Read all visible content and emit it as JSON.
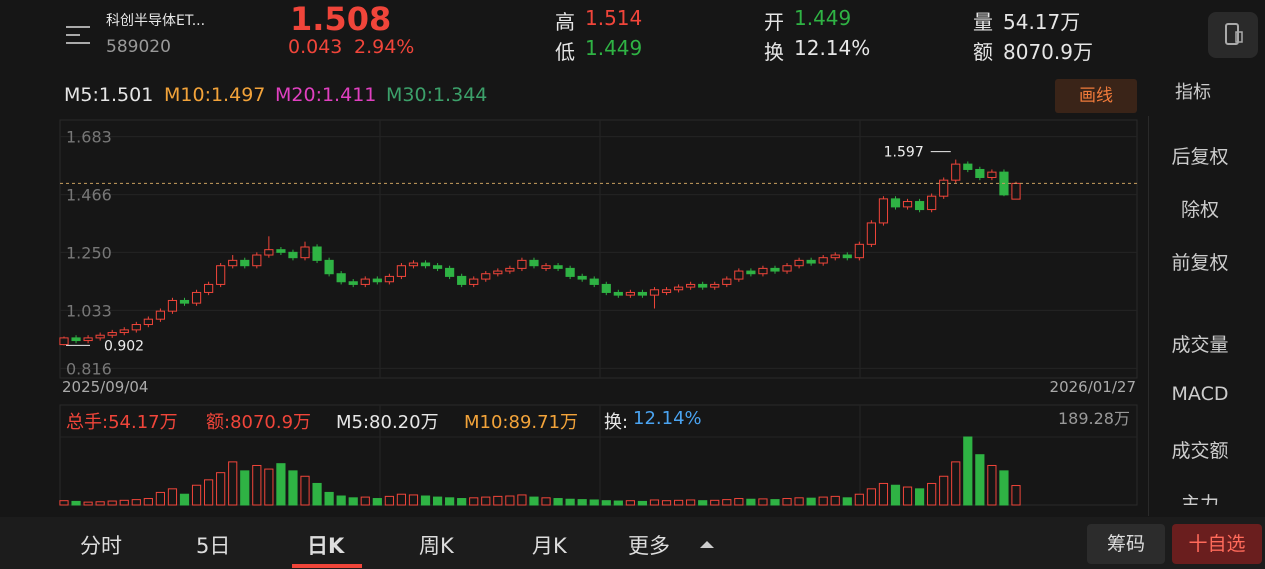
{
  "header": {
    "name": "科创半导体ET...",
    "code": "589020",
    "price": "1.508",
    "change": "0.043",
    "change_pct": "2.94%",
    "high_label": "高",
    "high": "1.514",
    "low_label": "低",
    "low": "1.449",
    "open_label": "开",
    "open": "1.449",
    "turnover_label": "换",
    "turnover": "12.14%",
    "volume_label": "量",
    "volume": "54.17万",
    "amount_label": "额",
    "amount": "8070.9万"
  },
  "ma": {
    "m5": "M5:1.501",
    "m10": "M10:1.497",
    "m20": "M20:1.411",
    "m30": "M30:1.344"
  },
  "draw_button": "画线",
  "sidebar": {
    "indicator": "指标",
    "items": [
      "后复权",
      "除权",
      "前复权",
      "成交量",
      "MACD",
      "成交额",
      "主力"
    ]
  },
  "volume_header": {
    "total": "总手:54.17万",
    "amount": "额:8070.9万",
    "m5": "M5:80.20万",
    "m10": "M10:89.71万",
    "turnover_label": "换:",
    "turnover": "12.14%"
  },
  "tabs": [
    "分时",
    "5日",
    "日K",
    "周K",
    "月K",
    "更多"
  ],
  "chip_button": "筹码",
  "watch_button": "十自选",
  "chart_data": {
    "type": "candlestick",
    "x_start": "2025/09/04",
    "x_end": "2026/01/27",
    "ylim": [
      0.78,
      1.745
    ],
    "yticks": [
      {
        "value": 0.816,
        "label": "0.816"
      },
      {
        "value": 1.033,
        "label": "1.033"
      },
      {
        "value": 1.25,
        "label": "1.250"
      },
      {
        "value": 1.466,
        "label": "1.466"
      },
      {
        "value": 1.683,
        "label": "1.683"
      }
    ],
    "high_marker": 1.597,
    "low_marker": 0.902,
    "up_color": "#f0453a",
    "down_color": "#2fb344",
    "ohlc": [
      [
        0.905,
        0.935,
        0.902,
        0.93
      ],
      [
        0.93,
        0.94,
        0.91,
        0.92
      ],
      [
        0.92,
        0.94,
        0.91,
        0.93
      ],
      [
        0.93,
        0.95,
        0.92,
        0.94
      ],
      [
        0.94,
        0.96,
        0.93,
        0.95
      ],
      [
        0.95,
        0.97,
        0.94,
        0.96
      ],
      [
        0.96,
        0.99,
        0.95,
        0.98
      ],
      [
        0.98,
        1.01,
        0.97,
        1.0
      ],
      [
        1.0,
        1.04,
        0.99,
        1.03
      ],
      [
        1.03,
        1.08,
        1.02,
        1.07
      ],
      [
        1.07,
        1.08,
        1.05,
        1.06
      ],
      [
        1.06,
        1.11,
        1.05,
        1.1
      ],
      [
        1.1,
        1.14,
        1.09,
        1.13
      ],
      [
        1.13,
        1.21,
        1.12,
        1.2
      ],
      [
        1.2,
        1.24,
        1.19,
        1.22
      ],
      [
        1.22,
        1.23,
        1.19,
        1.2
      ],
      [
        1.2,
        1.25,
        1.19,
        1.24
      ],
      [
        1.24,
        1.31,
        1.23,
        1.26
      ],
      [
        1.26,
        1.27,
        1.24,
        1.25
      ],
      [
        1.25,
        1.26,
        1.22,
        1.23
      ],
      [
        1.23,
        1.29,
        1.22,
        1.27
      ],
      [
        1.27,
        1.28,
        1.21,
        1.22
      ],
      [
        1.22,
        1.23,
        1.16,
        1.17
      ],
      [
        1.17,
        1.18,
        1.13,
        1.14
      ],
      [
        1.14,
        1.15,
        1.12,
        1.13
      ],
      [
        1.13,
        1.16,
        1.12,
        1.15
      ],
      [
        1.15,
        1.16,
        1.13,
        1.14
      ],
      [
        1.14,
        1.17,
        1.13,
        1.16
      ],
      [
        1.16,
        1.21,
        1.15,
        1.2
      ],
      [
        1.2,
        1.22,
        1.19,
        1.21
      ],
      [
        1.21,
        1.22,
        1.19,
        1.2
      ],
      [
        1.2,
        1.21,
        1.18,
        1.19
      ],
      [
        1.19,
        1.2,
        1.15,
        1.16
      ],
      [
        1.16,
        1.17,
        1.12,
        1.13
      ],
      [
        1.13,
        1.16,
        1.12,
        1.15
      ],
      [
        1.15,
        1.18,
        1.14,
        1.17
      ],
      [
        1.17,
        1.19,
        1.16,
        1.18
      ],
      [
        1.18,
        1.2,
        1.17,
        1.19
      ],
      [
        1.19,
        1.23,
        1.18,
        1.22
      ],
      [
        1.22,
        1.23,
        1.19,
        1.2
      ],
      [
        1.19,
        1.21,
        1.18,
        1.2
      ],
      [
        1.2,
        1.21,
        1.18,
        1.19
      ],
      [
        1.19,
        1.2,
        1.15,
        1.16
      ],
      [
        1.16,
        1.17,
        1.14,
        1.15
      ],
      [
        1.15,
        1.16,
        1.12,
        1.13
      ],
      [
        1.13,
        1.14,
        1.09,
        1.1
      ],
      [
        1.1,
        1.11,
        1.08,
        1.09
      ],
      [
        1.09,
        1.11,
        1.08,
        1.1
      ],
      [
        1.1,
        1.11,
        1.08,
        1.09
      ],
      [
        1.09,
        1.12,
        1.04,
        1.11
      ],
      [
        1.1,
        1.12,
        1.09,
        1.11
      ],
      [
        1.11,
        1.13,
        1.1,
        1.12
      ],
      [
        1.12,
        1.14,
        1.11,
        1.13
      ],
      [
        1.13,
        1.14,
        1.11,
        1.12
      ],
      [
        1.12,
        1.14,
        1.11,
        1.13
      ],
      [
        1.13,
        1.16,
        1.12,
        1.15
      ],
      [
        1.15,
        1.19,
        1.14,
        1.18
      ],
      [
        1.18,
        1.19,
        1.16,
        1.17
      ],
      [
        1.17,
        1.2,
        1.16,
        1.19
      ],
      [
        1.19,
        1.2,
        1.17,
        1.18
      ],
      [
        1.18,
        1.21,
        1.17,
        1.2
      ],
      [
        1.2,
        1.23,
        1.19,
        1.22
      ],
      [
        1.22,
        1.23,
        1.2,
        1.21
      ],
      [
        1.21,
        1.24,
        1.2,
        1.23
      ],
      [
        1.23,
        1.25,
        1.22,
        1.24
      ],
      [
        1.24,
        1.25,
        1.22,
        1.23
      ],
      [
        1.23,
        1.29,
        1.22,
        1.28
      ],
      [
        1.28,
        1.37,
        1.27,
        1.36
      ],
      [
        1.36,
        1.46,
        1.35,
        1.45
      ],
      [
        1.45,
        1.46,
        1.41,
        1.42
      ],
      [
        1.42,
        1.45,
        1.41,
        1.44
      ],
      [
        1.44,
        1.45,
        1.4,
        1.41
      ],
      [
        1.41,
        1.47,
        1.4,
        1.46
      ],
      [
        1.46,
        1.53,
        1.45,
        1.52
      ],
      [
        1.52,
        1.597,
        1.51,
        1.58
      ],
      [
        1.58,
        1.59,
        1.55,
        1.56
      ],
      [
        1.56,
        1.57,
        1.52,
        1.53
      ],
      [
        1.53,
        1.56,
        1.52,
        1.55
      ],
      [
        1.55,
        1.56,
        1.46,
        1.465
      ],
      [
        1.449,
        1.514,
        1.449,
        1.508
      ]
    ],
    "volume": [
      12,
      10,
      8,
      9,
      11,
      13,
      15,
      18,
      35,
      45,
      30,
      55,
      70,
      90,
      120,
      95,
      110,
      100,
      115,
      95,
      80,
      60,
      35,
      25,
      20,
      22,
      18,
      24,
      30,
      28,
      25,
      22,
      20,
      18,
      20,
      22,
      24,
      25,
      28,
      22,
      20,
      18,
      16,
      15,
      14,
      12,
      11,
      12,
      10,
      14,
      12,
      13,
      14,
      12,
      13,
      15,
      18,
      16,
      17,
      15,
      18,
      20,
      19,
      22,
      24,
      20,
      30,
      45,
      60,
      55,
      50,
      45,
      60,
      80,
      120,
      189.28,
      140,
      110,
      95,
      54.17
    ],
    "volume_ylim": [
      0,
      189.28
    ],
    "volume_ticks": [
      {
        "value": 189.28,
        "label": "189.28万"
      }
    ]
  }
}
